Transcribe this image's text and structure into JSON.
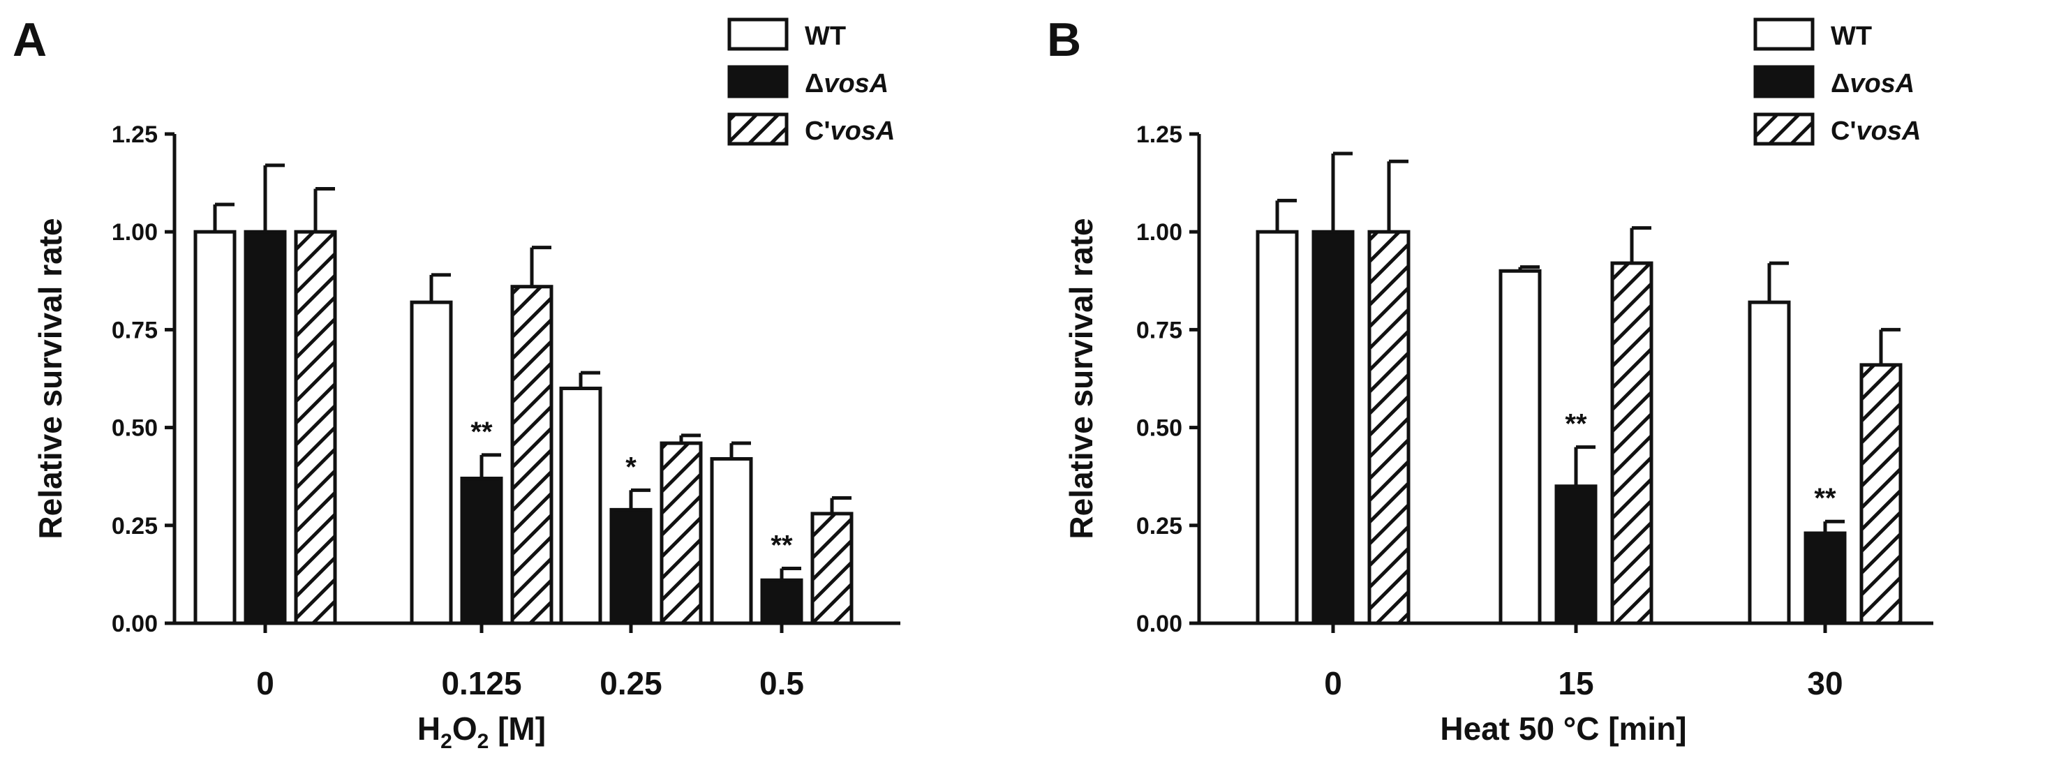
{
  "chart_data": [
    {
      "panel": "A",
      "type": "bar",
      "xlabel_parts": [
        "H",
        "2",
        "O",
        "2",
        " [M]"
      ],
      "ylabel": "Relative survival rate",
      "ylim": [
        0,
        1.25
      ],
      "yticks": [
        "0.00",
        "0.25",
        "0.50",
        "0.75",
        "1.00",
        "1.25"
      ],
      "categories": [
        "0",
        "0.125",
        "0.25",
        "0.5"
      ],
      "series": [
        {
          "name": "WT",
          "prefix": "WT",
          "italic": "",
          "fill": "white",
          "values": [
            1.0,
            0.82,
            0.6,
            0.42
          ],
          "errors": [
            0.07,
            0.07,
            0.04,
            0.04
          ]
        },
        {
          "name": "ΔvosA",
          "prefix": "Δ",
          "italic": "vosA",
          "fill": "black",
          "values": [
            1.0,
            0.37,
            0.29,
            0.11
          ],
          "errors": [
            0.17,
            0.06,
            0.05,
            0.03
          ]
        },
        {
          "name": "C'vosA",
          "prefix": "C'",
          "italic": "vosA",
          "fill": "hatch",
          "values": [
            1.0,
            0.86,
            0.46,
            0.28
          ],
          "errors": [
            0.11,
            0.1,
            0.02,
            0.04
          ]
        }
      ],
      "annotations": [
        {
          "category": 1,
          "series": 1,
          "text": "**"
        },
        {
          "category": 2,
          "series": 1,
          "text": "*"
        },
        {
          "category": 3,
          "series": 1,
          "text": "**"
        }
      ]
    },
    {
      "panel": "B",
      "type": "bar",
      "xlabel_parts": [
        "Heat 50 °C [min]"
      ],
      "ylabel": "Relative survival rate",
      "ylim": [
        0,
        1.25
      ],
      "yticks": [
        "0.00",
        "0.25",
        "0.50",
        "0.75",
        "1.00",
        "1.25"
      ],
      "categories": [
        "0",
        "15",
        "30"
      ],
      "series": [
        {
          "name": "WT",
          "prefix": "WT",
          "italic": "",
          "fill": "white",
          "values": [
            1.0,
            0.9,
            0.82
          ],
          "errors": [
            0.08,
            0.01,
            0.1
          ]
        },
        {
          "name": "ΔvosA",
          "prefix": "Δ",
          "italic": "vosA",
          "fill": "black",
          "values": [
            1.0,
            0.35,
            0.23
          ],
          "errors": [
            0.2,
            0.1,
            0.03
          ]
        },
        {
          "name": "C'vosA",
          "prefix": "C'",
          "italic": "vosA",
          "fill": "hatch",
          "values": [
            1.0,
            0.92,
            0.66
          ],
          "errors": [
            0.18,
            0.09,
            0.09
          ]
        }
      ],
      "annotations": [
        {
          "category": 1,
          "series": 1,
          "text": "**"
        },
        {
          "category": 2,
          "series": 1,
          "text": "**"
        }
      ]
    }
  ]
}
